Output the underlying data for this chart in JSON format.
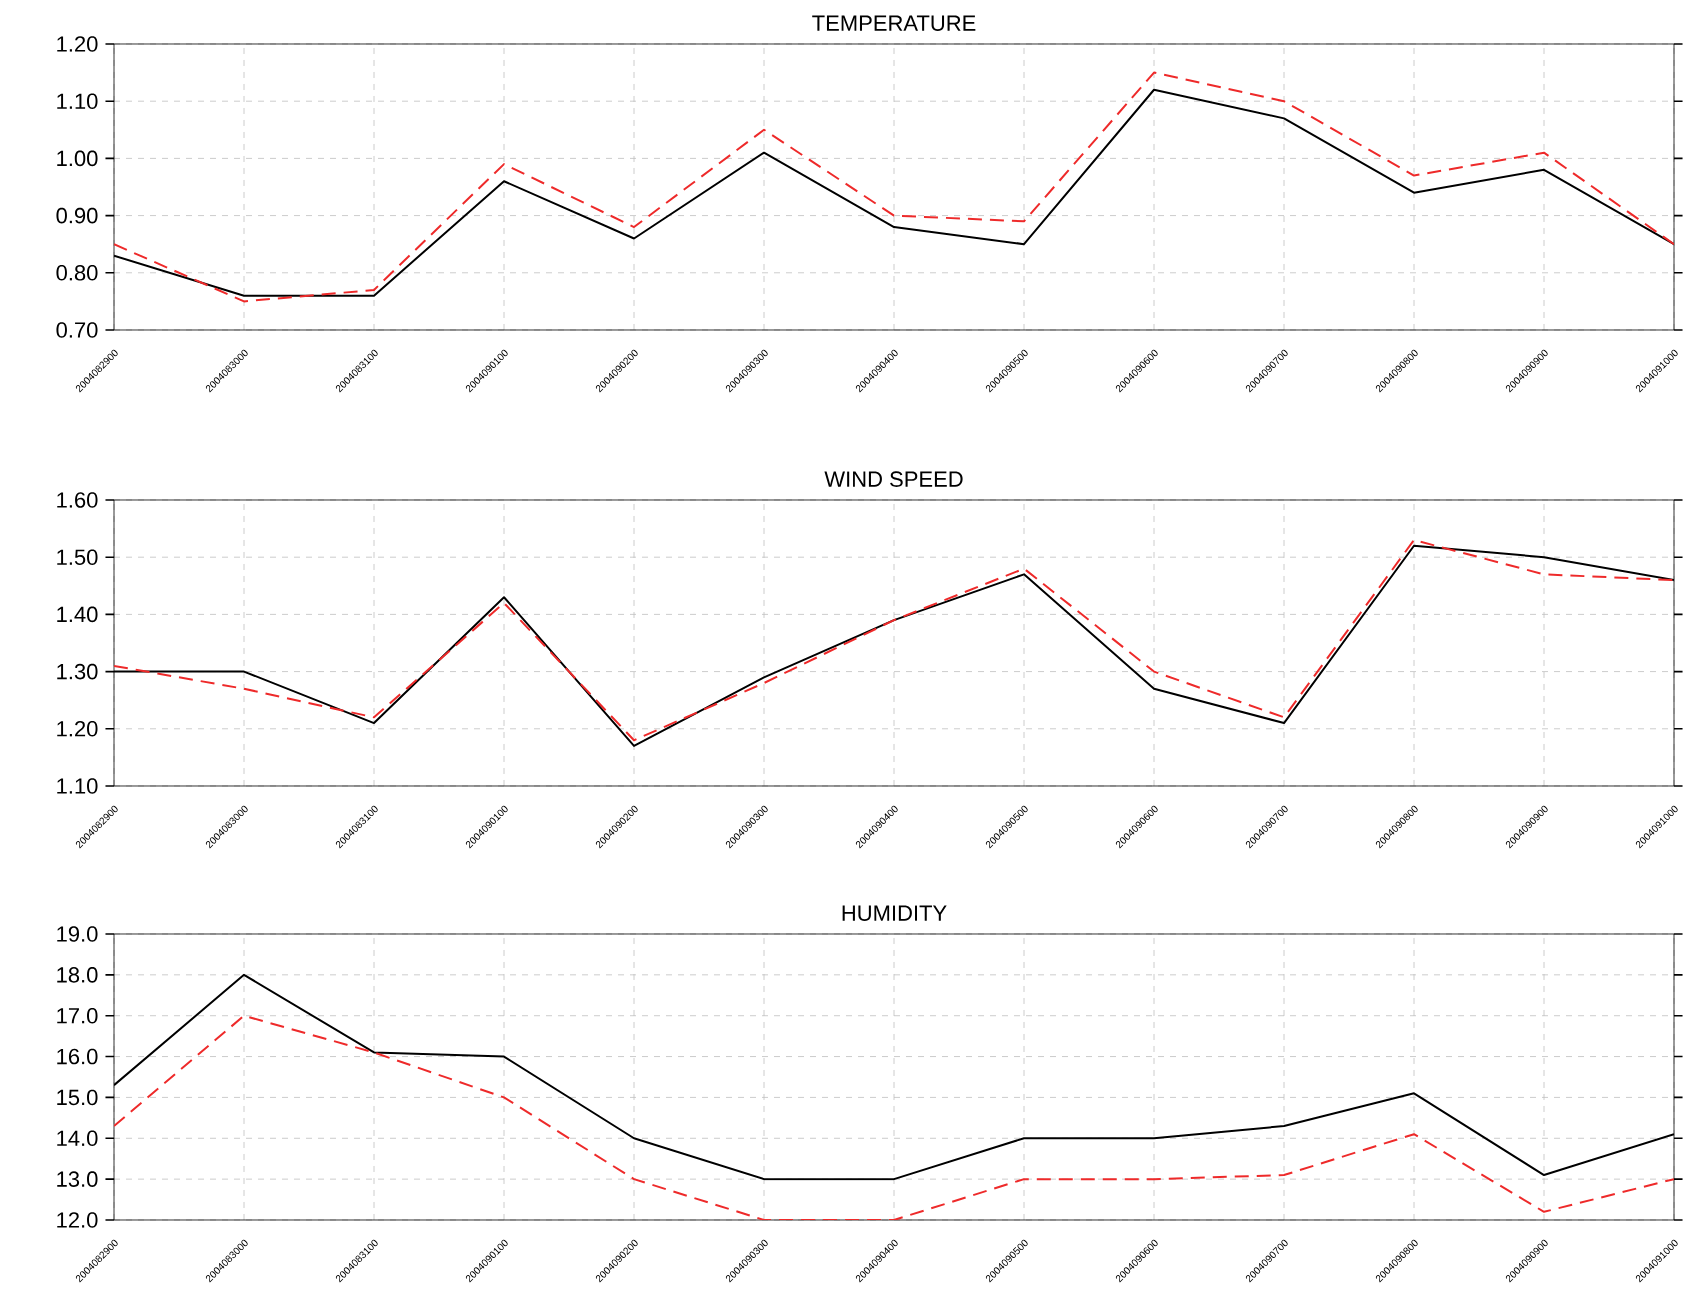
{
  "chart_data": [
    {
      "type": "line",
      "title": "TEMPERATURE",
      "categories": [
        "2004082900",
        "2004083000",
        "2004083100",
        "2004090100",
        "2004090200",
        "2004090300",
        "2004090400",
        "2004090500",
        "2004090600",
        "2004090700",
        "2004090800",
        "2004090900",
        "2004091000"
      ],
      "ylim": [
        0.7,
        1.2
      ],
      "yticks": [
        {
          "value": 0.7,
          "label": "0.70"
        },
        {
          "value": 0.8,
          "label": "0.80"
        },
        {
          "value": 0.9,
          "label": "0.90"
        },
        {
          "value": 1.0,
          "label": "1.00"
        },
        {
          "value": 1.1,
          "label": "1.10"
        },
        {
          "value": 1.2,
          "label": "1.20"
        }
      ],
      "grid": true,
      "marker": "none",
      "series": [
        {
          "color": "#000000",
          "line_style": "solid",
          "values": [
            0.83,
            0.76,
            0.76,
            0.96,
            0.86,
            1.01,
            0.88,
            0.85,
            1.12,
            1.07,
            0.94,
            0.98,
            0.85
          ]
        },
        {
          "color": "#ee2a2a",
          "line_style": "dashed",
          "values": [
            0.85,
            0.75,
            0.77,
            0.99,
            0.88,
            1.05,
            0.9,
            0.89,
            1.15,
            1.1,
            0.97,
            1.01,
            0.85
          ]
        }
      ]
    },
    {
      "type": "line",
      "title": "WIND SPEED",
      "categories": [
        "2004082900",
        "2004083000",
        "2004083100",
        "2004090100",
        "2004090200",
        "2004090300",
        "2004090400",
        "2004090500",
        "2004090600",
        "2004090700",
        "2004090800",
        "2004090900",
        "2004091000"
      ],
      "ylim": [
        1.1,
        1.6
      ],
      "yticks": [
        {
          "value": 1.1,
          "label": "1.10"
        },
        {
          "value": 1.2,
          "label": "1.20"
        },
        {
          "value": 1.3,
          "label": "1.30"
        },
        {
          "value": 1.4,
          "label": "1.40"
        },
        {
          "value": 1.5,
          "label": "1.50"
        },
        {
          "value": 1.6,
          "label": "1.60"
        }
      ],
      "grid": true,
      "marker": "none",
      "series": [
        {
          "color": "#000000",
          "line_style": "solid",
          "values": [
            1.3,
            1.3,
            1.21,
            1.43,
            1.17,
            1.29,
            1.39,
            1.47,
            1.27,
            1.21,
            1.52,
            1.5,
            1.46
          ]
        },
        {
          "color": "#ee2a2a",
          "line_style": "dashed",
          "values": [
            1.31,
            1.27,
            1.22,
            1.42,
            1.18,
            1.28,
            1.39,
            1.48,
            1.3,
            1.22,
            1.53,
            1.47,
            1.46
          ]
        }
      ]
    },
    {
      "type": "line",
      "title": "HUMIDITY",
      "categories": [
        "2004082900",
        "2004083000",
        "2004083100",
        "2004090100",
        "2004090200",
        "2004090300",
        "2004090400",
        "2004090500",
        "2004090600",
        "2004090700",
        "2004090800",
        "2004090900",
        "2004091000"
      ],
      "ylim": [
        12,
        19
      ],
      "yticks": [
        {
          "value": 12,
          "label": "12.0"
        },
        {
          "value": 13,
          "label": "13.0"
        },
        {
          "value": 14,
          "label": "14.0"
        },
        {
          "value": 15,
          "label": "15.0"
        },
        {
          "value": 16,
          "label": "16.0"
        },
        {
          "value": 17,
          "label": "17.0"
        },
        {
          "value": 18,
          "label": "18.0"
        },
        {
          "value": 19,
          "label": "19.0"
        }
      ],
      "grid": true,
      "marker": "none",
      "series": [
        {
          "color": "#000000",
          "line_style": "solid",
          "values": [
            15.3,
            18.0,
            16.1,
            16.0,
            14.0,
            13.0,
            13.0,
            14.0,
            14.0,
            14.3,
            15.1,
            13.1,
            14.1
          ]
        },
        {
          "color": "#ee2a2a",
          "line_style": "dashed",
          "values": [
            14.3,
            17.0,
            16.1,
            15.0,
            13.0,
            12.0,
            12.0,
            13.0,
            13.0,
            13.1,
            14.1,
            12.2,
            13.0
          ]
        }
      ]
    }
  ]
}
